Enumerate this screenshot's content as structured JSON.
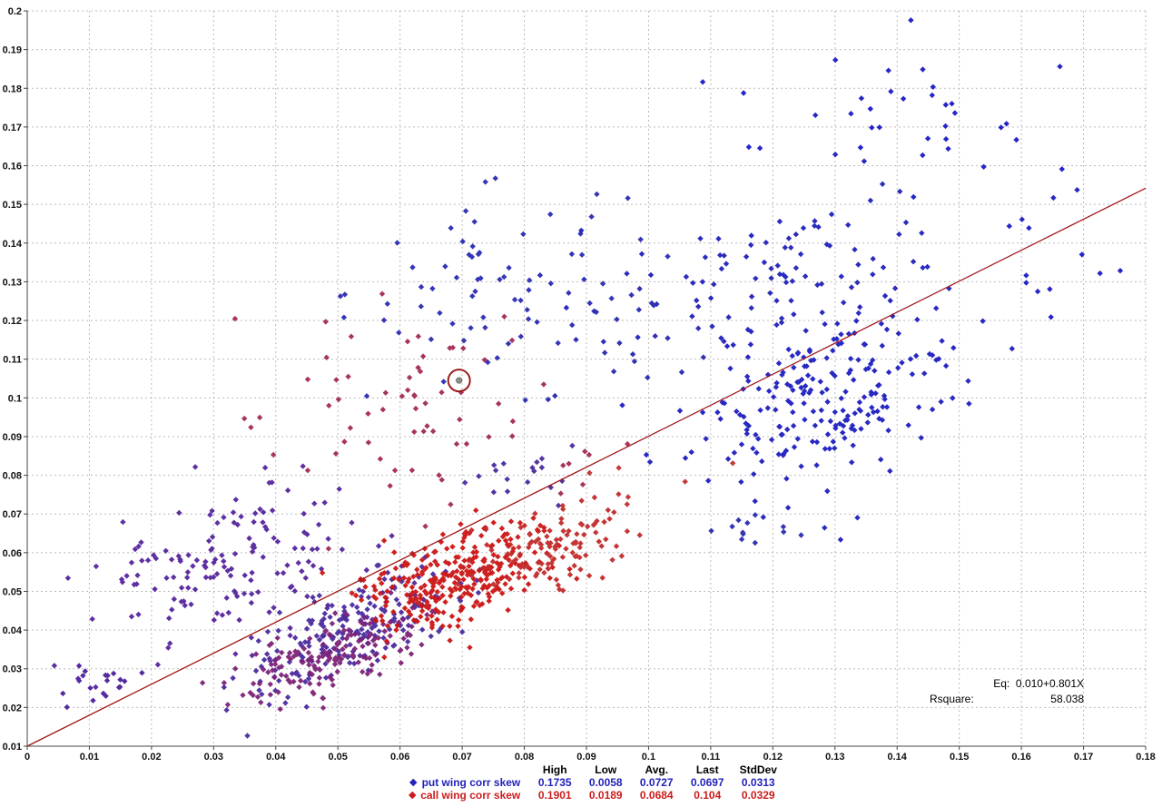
{
  "chart_data": {
    "type": "scatter",
    "title": "",
    "background": "#ffffff",
    "grid": true,
    "grid_color": "#bbbbbb",
    "axis_color": "#444444",
    "seed": 1234,
    "marker": "diamond",
    "marker_size": 3.2,
    "x_axis": {
      "min": 0,
      "max": 0.18,
      "tick_values": [
        0,
        0.01,
        0.02,
        0.03,
        0.04,
        0.05,
        0.06,
        0.07,
        0.08,
        0.09,
        0.1,
        0.11,
        0.12,
        0.13,
        0.14,
        0.15,
        0.16,
        0.17,
        0.18
      ],
      "tick_labels": [
        "0",
        "0.01",
        "0.02",
        "0.03",
        "0.04",
        "0.05",
        "0.06",
        "0.07",
        "0.08",
        "0.09",
        "0.1",
        "0.11",
        "0.12",
        "0.13",
        "0.14",
        "0.15",
        "0.16",
        "0.17",
        "0.18"
      ]
    },
    "y_axis": {
      "min": 0.01,
      "max": 0.2,
      "tick_values": [
        0.01,
        0.02,
        0.03,
        0.04,
        0.05,
        0.06,
        0.07,
        0.08,
        0.09,
        0.1,
        0.11,
        0.12,
        0.13,
        0.14,
        0.15,
        0.16,
        0.17,
        0.18,
        0.19,
        0.2
      ],
      "tick_labels": [
        "0.01",
        "0.02",
        "0.03",
        "0.04",
        "0.05",
        "0.06",
        "0.07",
        "0.08",
        "0.09",
        "0.1",
        "0.11",
        "0.12",
        "0.13",
        "0.14",
        "0.15",
        "0.16",
        "0.17",
        "0.18",
        "0.19",
        "0.2"
      ]
    },
    "regression": {
      "intercept": 0.01,
      "slope": 0.801,
      "color": "#a01818",
      "eq_label": "Eq:  0.010+0.801X",
      "rsquare_label": "Rsquare:",
      "rsquare_value": "58.038"
    },
    "highlight": {
      "x": 0.0695,
      "y": 0.1045,
      "ring_color": "#9b1c1c",
      "dot_color": "#8f8f8f"
    },
    "stats_headers": [
      "High",
      "Low",
      "Avg.",
      "Last",
      "StdDev"
    ],
    "series": [
      {
        "name": "put wing corr skew",
        "color": "#1c1cc0",
        "text_color": "#2222bb",
        "stats": {
          "high": "0.1735",
          "low": "0.0058",
          "avg": "0.0727",
          "last": "0.0697",
          "stddev": "0.0313"
        },
        "clusters": [
          {
            "n": 20,
            "cx": 0.011,
            "cy": 0.026,
            "sx": 0.004,
            "sy": 0.003,
            "rho": 0.2,
            "color": "#4a1f9a"
          },
          {
            "n": 160,
            "cx": 0.033,
            "cy": 0.057,
            "sx": 0.011,
            "sy": 0.01,
            "rho": 0.25,
            "color": "#55249c"
          },
          {
            "n": 200,
            "cx": 0.053,
            "cy": 0.04,
            "sx": 0.009,
            "sy": 0.008,
            "rho": 0.7,
            "color": "#4a2a9e"
          },
          {
            "n": 70,
            "cx": 0.075,
            "cy": 0.13,
            "sx": 0.011,
            "sy": 0.012,
            "rho": 0.1,
            "color": "#2a2ab4"
          },
          {
            "n": 25,
            "cx": 0.098,
            "cy": 0.115,
            "sx": 0.008,
            "sy": 0.009,
            "rho": 0.0,
            "color": "#2626b2"
          },
          {
            "n": 18,
            "cx": 0.079,
            "cy": 0.081,
            "sx": 0.004,
            "sy": 0.004,
            "rho": 0.0,
            "color": "#4a2a9e"
          },
          {
            "n": 220,
            "cx": 0.128,
            "cy": 0.1,
            "sx": 0.011,
            "sy": 0.012,
            "rho": 0.35,
            "color": "#1c1cc0"
          },
          {
            "n": 90,
            "cx": 0.125,
            "cy": 0.134,
            "sx": 0.012,
            "sy": 0.01,
            "rho": 0.2,
            "color": "#2020bb"
          },
          {
            "n": 35,
            "cx": 0.136,
            "cy": 0.165,
            "sx": 0.011,
            "sy": 0.012,
            "rho": 0.1,
            "color": "#1a1ac4"
          },
          {
            "n": 18,
            "cx": 0.163,
            "cy": 0.15,
            "sx": 0.006,
            "sy": 0.018,
            "rho": 0.2,
            "color": "#1a1ac4"
          },
          {
            "n": 12,
            "cx": 0.118,
            "cy": 0.066,
            "sx": 0.004,
            "sy": 0.005,
            "rho": 0.0,
            "color": "#2a2ab0"
          }
        ]
      },
      {
        "name": "call wing corr skew",
        "color": "#cc1414",
        "text_color": "#cc1c1c",
        "stats": {
          "high": "0.1901",
          "low": "0.0189",
          "avg": "0.0684",
          "last": "0.104",
          "stddev": "0.0329"
        },
        "clusters": [
          {
            "n": 170,
            "cx": 0.05,
            "cy": 0.034,
            "sx": 0.008,
            "sy": 0.006,
            "rho": 0.7,
            "color": "#7c2276"
          },
          {
            "n": 70,
            "cx": 0.063,
            "cy": 0.095,
            "sx": 0.013,
            "sy": 0.015,
            "rho": 0.0,
            "color": "#a22a52"
          },
          {
            "n": 300,
            "cx": 0.069,
            "cy": 0.054,
            "sx": 0.008,
            "sy": 0.007,
            "rho": 0.5,
            "color": "#cc1414"
          },
          {
            "n": 120,
            "cx": 0.085,
            "cy": 0.061,
            "sx": 0.007,
            "sy": 0.006,
            "rho": 0.4,
            "color": "#c22a2a"
          },
          {
            "n": 6,
            "cx": 0.101,
            "cy": 0.076,
            "sx": 0.004,
            "sy": 0.005,
            "rho": 0.0,
            "color": "#c03030"
          }
        ]
      }
    ]
  }
}
